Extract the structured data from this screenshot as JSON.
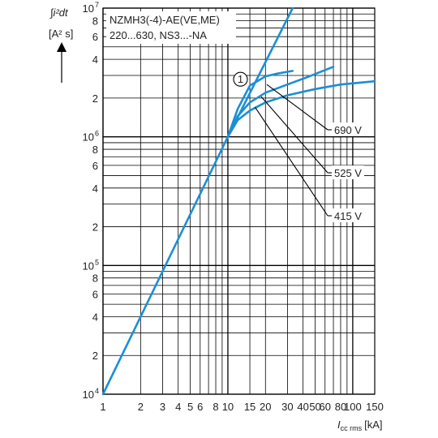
{
  "colors": {
    "curve": "#1b8fd6",
    "grid": "#000000",
    "text": "#222222",
    "background": "#ffffff"
  },
  "chart_data": {
    "type": "line",
    "title": "NZMH3(-4)-AE(VE,ME)",
    "subtitle": "220...630, NS3...-NA",
    "ylabel": "∫i²dt",
    "yunit": "[A² s]",
    "xlabel": "I",
    "xlabel_sub": "cc rms",
    "xunit": "[kA]",
    "xscale": "log",
    "yscale": "log",
    "xlim": [
      1,
      150
    ],
    "ylim": [
      10000,
      10000000
    ],
    "grid": true,
    "x_tick_labels": [
      {
        "v": 1,
        "t": "1"
      },
      {
        "v": 2,
        "t": "2"
      },
      {
        "v": 3,
        "t": "3"
      },
      {
        "v": 4,
        "t": "4"
      },
      {
        "v": 5,
        "t": "5"
      },
      {
        "v": 6,
        "t": "6"
      },
      {
        "v": 8,
        "t": "8"
      },
      {
        "v": 10,
        "t": "10"
      },
      {
        "v": 15,
        "t": "15"
      },
      {
        "v": 20,
        "t": "20"
      },
      {
        "v": 30,
        "t": "30"
      },
      {
        "v": 40,
        "t": "40"
      },
      {
        "v": 50,
        "t": "50"
      },
      {
        "v": 60,
        "t": "60"
      },
      {
        "v": 80,
        "t": "80"
      },
      {
        "v": 100,
        "t": "100"
      },
      {
        "v": 150,
        "t": "150"
      }
    ],
    "y_tick_labels": [
      {
        "v": 10000,
        "t": "10",
        "sup": "4"
      },
      {
        "v": 20000,
        "t": "2"
      },
      {
        "v": 40000,
        "t": "4"
      },
      {
        "v": 60000,
        "t": "6"
      },
      {
        "v": 80000,
        "t": "8"
      },
      {
        "v": 100000,
        "t": "10",
        "sup": "5"
      },
      {
        "v": 200000,
        "t": "2"
      },
      {
        "v": 400000,
        "t": "4"
      },
      {
        "v": 600000,
        "t": "6"
      },
      {
        "v": 800000,
        "t": "8"
      },
      {
        "v": 1000000,
        "t": "10",
        "sup": "6"
      },
      {
        "v": 2000000,
        "t": "2"
      },
      {
        "v": 4000000,
        "t": "4"
      },
      {
        "v": 6000000,
        "t": "6"
      },
      {
        "v": 8000000,
        "t": "8"
      },
      {
        "v": 10000000,
        "t": "10",
        "sup": "7"
      }
    ],
    "series": [
      {
        "name": "",
        "x": [
          1,
          10,
          33
        ],
        "y": [
          10000,
          1000000,
          10000000
        ]
      },
      {
        "name": "690 V",
        "x": [
          10,
          12,
          15,
          20,
          25,
          33
        ],
        "y": [
          1000000,
          1650000,
          2500000,
          2950000,
          3100000,
          3250000
        ]
      },
      {
        "name": "525 V",
        "x": [
          10,
          12,
          15,
          20,
          30,
          45,
          60,
          70
        ],
        "y": [
          1000000,
          1450000,
          1850000,
          2200000,
          2550000,
          2950000,
          3300000,
          3500000
        ]
      },
      {
        "name": "415 V",
        "x": [
          10,
          12,
          15,
          20,
          30,
          50,
          80,
          150
        ],
        "y": [
          1000000,
          1350000,
          1600000,
          1850000,
          2100000,
          2350000,
          2550000,
          2700000
        ]
      }
    ],
    "annotations": [
      {
        "text": "1",
        "x": 13,
        "y": 2800000,
        "shape": "circle"
      }
    ]
  }
}
